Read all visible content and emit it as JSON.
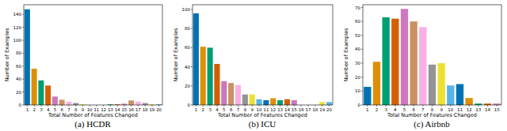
{
  "chart_data": [
    {
      "type": "bar",
      "title": "(a) HCDR",
      "xlabel": "Total Number of Features Changed",
      "ylabel": "Number of Examples",
      "categories": [
        "1",
        "2",
        "3",
        "4",
        "5",
        "6",
        "7",
        "8",
        "9",
        "10",
        "11",
        "12",
        "13",
        "14",
        "15",
        "16",
        "17",
        "18",
        "19",
        "20"
      ],
      "values": [
        148,
        56,
        38,
        30,
        13,
        8,
        5,
        3,
        1,
        0,
        0,
        0,
        1,
        1,
        2,
        7,
        5,
        3,
        1,
        1
      ],
      "colors": [
        "#0173b2",
        "#de8f05",
        "#029e73",
        "#d55e00",
        "#cc78bc",
        "#ca9161",
        "#fbafe4",
        "#949494",
        "#ece133",
        "#56b4e9",
        "#0173b2",
        "#de8f05",
        "#029e73",
        "#d55e00",
        "#cc78bc",
        "#ca9161",
        "#fbafe4",
        "#949494",
        "#ece133",
        "#56b4e9"
      ],
      "ylim": [
        0,
        155
      ],
      "yticks": [
        0,
        20,
        40,
        60,
        80,
        100,
        120,
        140
      ],
      "grid": false
    },
    {
      "type": "bar",
      "title": "(b) ICU",
      "xlabel": "Total Number of Features Changed",
      "ylabel": "Number of Examples",
      "categories": [
        "1",
        "2",
        "3",
        "4",
        "5",
        "6",
        "7",
        "8",
        "9",
        "10",
        "11",
        "12",
        "13",
        "14",
        "15",
        "16",
        "17",
        "18",
        "19",
        "20"
      ],
      "values": [
        96,
        61,
        60,
        43,
        25,
        23,
        21,
        11,
        11,
        6,
        5,
        7,
        5,
        6,
        5,
        0,
        0,
        0,
        3,
        3
      ],
      "colors": [
        "#0173b2",
        "#de8f05",
        "#029e73",
        "#d55e00",
        "#cc78bc",
        "#ca9161",
        "#fbafe4",
        "#949494",
        "#ece133",
        "#56b4e9",
        "#0173b2",
        "#de8f05",
        "#029e73",
        "#d55e00",
        "#cc78bc",
        "#ca9161",
        "#fbafe4",
        "#949494",
        "#ece133",
        "#56b4e9"
      ],
      "ylim": [
        0,
        105
      ],
      "yticks": [
        0,
        20,
        40,
        60,
        80,
        100
      ],
      "grid": false
    },
    {
      "type": "bar",
      "title": "(c) Airbnb",
      "xlabel": "Total Number of Features Changed",
      "ylabel": "Number of Examples",
      "categories": [
        "1",
        "2",
        "3",
        "4",
        "5",
        "6",
        "7",
        "8",
        "9",
        "10",
        "11",
        "12",
        "13",
        "14",
        "15"
      ],
      "values": [
        13,
        31,
        63,
        62,
        69,
        60,
        56,
        29,
        30,
        14,
        15,
        5,
        1,
        1,
        1
      ],
      "colors": [
        "#0173b2",
        "#de8f05",
        "#029e73",
        "#d55e00",
        "#cc78bc",
        "#ca9161",
        "#fbafe4",
        "#949494",
        "#ece133",
        "#56b4e9",
        "#0173b2",
        "#de8f05",
        "#029e73",
        "#d55e00",
        "#cc78bc"
      ],
      "ylim": [
        0,
        72
      ],
      "yticks": [
        0,
        10,
        20,
        30,
        40,
        50,
        60,
        70
      ],
      "grid": false
    }
  ]
}
